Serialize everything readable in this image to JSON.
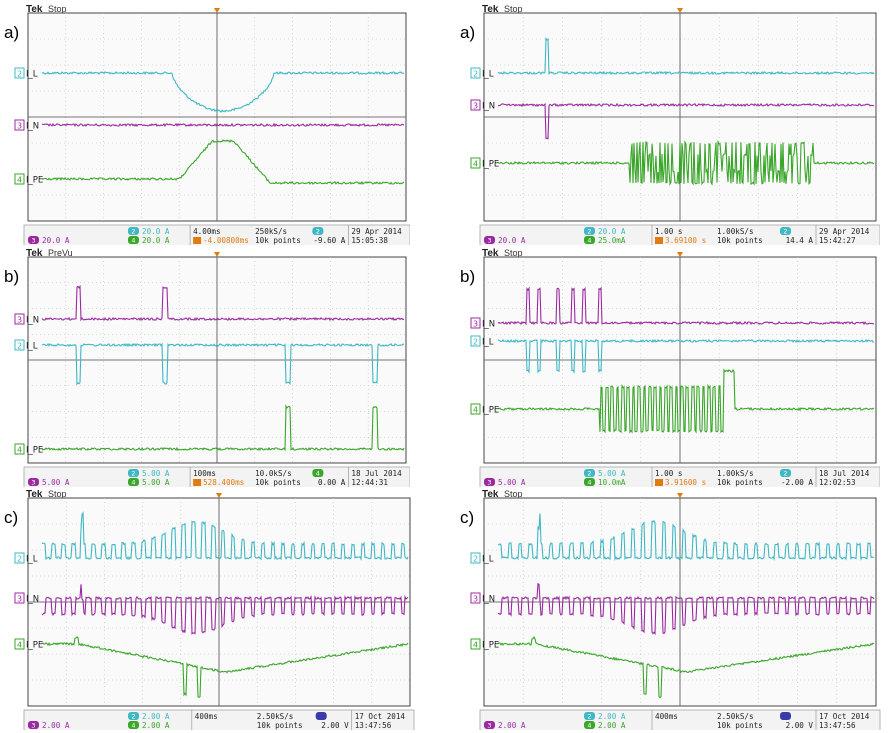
{
  "panels": [
    {
      "id": "p1",
      "label": "a)",
      "brand": "Tek",
      "state": "Stop",
      "traces": [
        {
          "ch": "2",
          "name": "I_L",
          "color": "#3fb8c4",
          "shape": "dip"
        },
        {
          "ch": "3",
          "name": "I_N",
          "color": "#9b2aa0",
          "shape": "flat"
        },
        {
          "ch": "4",
          "name": "I_PE",
          "color": "#3aa62a",
          "shape": "hump"
        }
      ],
      "status": {
        "ch3_scale": "20.0 A",
        "ch2_scale": "20.0 A",
        "ch4_scale": "20.0 A",
        "timebase": "4.00ms",
        "sample_rate": "250kS/s",
        "trigger_pos": "-4.00800ms",
        "record": "10k points",
        "trig_ch": "2",
        "trig_level": "-9.60 A",
        "date": "29 Apr 2014",
        "time": "15:05:38"
      }
    },
    {
      "id": "p2",
      "label": "a)",
      "brand": "Tek",
      "state": "Stop",
      "traces": [
        {
          "ch": "2",
          "name": "I_L",
          "color": "#3fb8c4",
          "shape": "spike-up"
        },
        {
          "ch": "3",
          "name": "I_N",
          "color": "#9b2aa0",
          "shape": "spike-down"
        },
        {
          "ch": "4",
          "name": "I_PE",
          "color": "#3aa62a",
          "shape": "burst"
        }
      ],
      "status": {
        "ch3_scale": "20.0 A",
        "ch2_scale": "20.0 A",
        "ch4_scale": "25.0mA",
        "timebase": "1.00 s",
        "sample_rate": "1.00kS/s",
        "trigger_pos": "3.69100 s",
        "record": "10k points",
        "trig_ch": "2",
        "trig_level": "14.4 A",
        "date": "29 Apr 2014",
        "time": "15:42:27"
      }
    },
    {
      "id": "p3",
      "label": "b)",
      "brand": "Tek",
      "state": "PreVu",
      "traces": [
        {
          "ch": "3",
          "name": "I_N",
          "color": "#9b2aa0",
          "shape": "pulses-up"
        },
        {
          "ch": "2",
          "name": "I_L",
          "color": "#3fb8c4",
          "shape": "pulses-down"
        },
        {
          "ch": "4",
          "name": "I_PE",
          "color": "#3aa62a",
          "shape": "pulses-late"
        }
      ],
      "status": {
        "ch3_scale": "5.00 A",
        "ch2_scale": "5.00 A",
        "ch4_scale": "5.00 A",
        "timebase": "100ms",
        "sample_rate": "10.0kS/s",
        "trigger_pos": "528.400ms",
        "record": "10k points",
        "trig_ch": "4",
        "trig_level": "0.00 A",
        "date": "18 Jul 2014",
        "time": "12:44:31"
      }
    },
    {
      "id": "p4",
      "label": "b)",
      "brand": "Tek",
      "state": "Stop",
      "traces": [
        {
          "ch": "3",
          "name": "I_N",
          "color": "#9b2aa0",
          "shape": "multi-up"
        },
        {
          "ch": "2",
          "name": "I_L",
          "color": "#3fb8c4",
          "shape": "multi-down"
        },
        {
          "ch": "4",
          "name": "I_PE",
          "color": "#3aa62a",
          "shape": "square-burst"
        }
      ],
      "status": {
        "ch3_scale": "5.00 A",
        "ch2_scale": "5.00 A",
        "ch4_scale": "10.0mA",
        "timebase": "1.00 s",
        "sample_rate": "1.00kS/s",
        "trigger_pos": "3.91600 s",
        "record": "10k points",
        "trig_ch": "2",
        "trig_level": "-2.00 A",
        "date": "18 Jul 2014",
        "time": "12:02:53"
      }
    },
    {
      "id": "p5",
      "label": "c)",
      "brand": "Tek",
      "state": "Stop",
      "traces": [
        {
          "ch": "2",
          "name": "I_L",
          "color": "#3fb8c4",
          "shape": "comb-up"
        },
        {
          "ch": "3",
          "name": "I_N",
          "color": "#9b2aa0",
          "shape": "comb-down"
        },
        {
          "ch": "4",
          "name": "I_PE",
          "color": "#3aa62a",
          "shape": "valley"
        }
      ],
      "status": {
        "ch3_scale": "2.00 A",
        "ch2_scale": "2.00 A",
        "ch4_scale": "2.00 A",
        "timebase": "400ms",
        "sample_rate": "2.50kS/s",
        "trigger_pos": "",
        "record": "10k points",
        "trig_ch": "",
        "trig_level": "2.00 V",
        "date": "17 Oct 2014",
        "time": "13:47:56"
      }
    },
    {
      "id": "p6",
      "label": "c)",
      "brand": "Tek",
      "state": "Stop",
      "traces": [
        {
          "ch": "2",
          "name": "I_L",
          "color": "#3fb8c4",
          "shape": "comb-up"
        },
        {
          "ch": "3",
          "name": "I_N",
          "color": "#9b2aa0",
          "shape": "comb-down"
        },
        {
          "ch": "4",
          "name": "I_PE",
          "color": "#3aa62a",
          "shape": "valley"
        }
      ],
      "status": {
        "ch3_scale": "2.00 A",
        "ch2_scale": "2.00 A",
        "ch4_scale": "2.00 A",
        "timebase": "400ms",
        "sample_rate": "2.50kS/s",
        "trigger_pos": "",
        "record": "10k points",
        "trig_ch": "",
        "trig_level": "2.00 V",
        "date": "17 Oct 2014",
        "time": "13:47:56"
      }
    }
  ],
  "chart_data": [
    {
      "type": "line",
      "series": [
        {
          "name": "I_L"
        },
        {
          "name": "I_N"
        },
        {
          "name": "I_PE"
        }
      ]
    },
    {
      "type": "line",
      "series": [
        {
          "name": "I_L"
        },
        {
          "name": "I_N"
        },
        {
          "name": "I_PE"
        }
      ]
    },
    {
      "type": "line",
      "series": [
        {
          "name": "I_N"
        },
        {
          "name": "I_L"
        },
        {
          "name": "I_PE"
        }
      ]
    },
    {
      "type": "line",
      "series": [
        {
          "name": "I_N"
        },
        {
          "name": "I_L"
        },
        {
          "name": "I_PE"
        }
      ]
    },
    {
      "type": "line",
      "series": [
        {
          "name": "I_L"
        },
        {
          "name": "I_N"
        },
        {
          "name": "I_PE"
        }
      ]
    },
    {
      "type": "line",
      "series": [
        {
          "name": "I_L"
        },
        {
          "name": "I_N"
        },
        {
          "name": "I_PE"
        }
      ]
    }
  ]
}
